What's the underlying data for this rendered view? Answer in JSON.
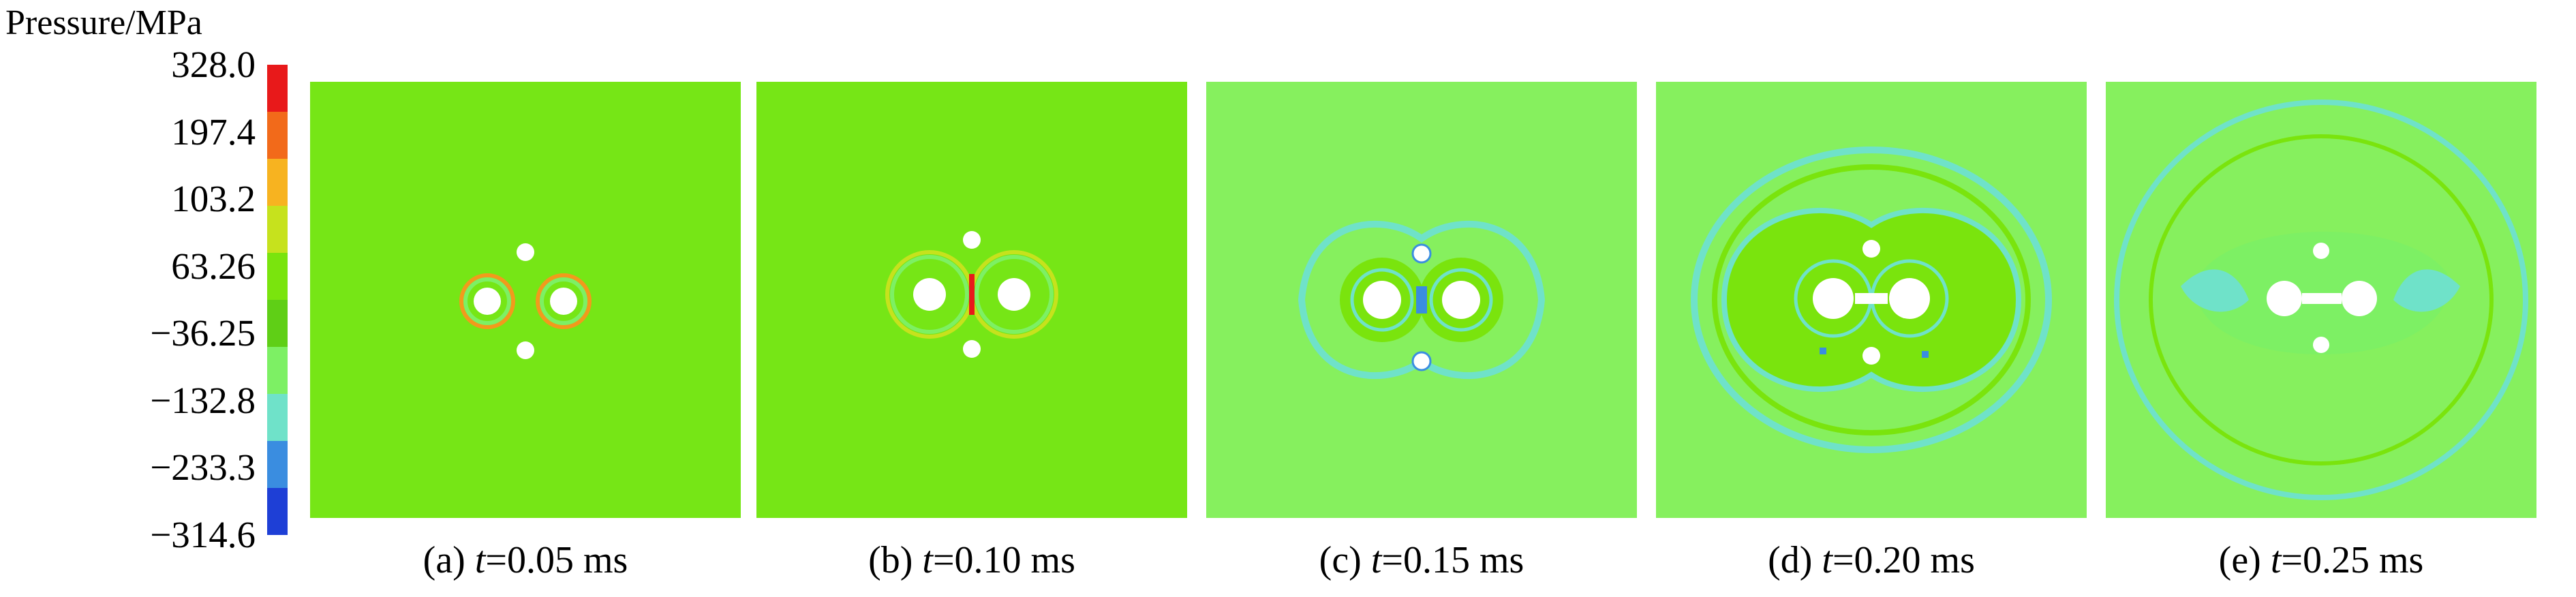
{
  "legend": {
    "title": "Pressure/MPa",
    "labels": [
      "328.0",
      "197.4",
      "103.2",
      "63.26",
      "−36.25",
      "−132.8",
      "−233.3",
      "−314.6"
    ],
    "colors": [
      "#e8191a",
      "#f26a1a",
      "#f7b320",
      "#c6e21d",
      "#7ae40d",
      "#5fcf16",
      "#7df064",
      "#6fe2c9",
      "#3a8de0",
      "#1e3fd6"
    ]
  },
  "panels": [
    {
      "label": "(a)",
      "var": "t",
      "value": "=0.05 ms"
    },
    {
      "label": "(b)",
      "var": "t",
      "value": "=0.10 ms"
    },
    {
      "label": "(c)",
      "var": "t",
      "value": "=0.15 ms"
    },
    {
      "label": "(d)",
      "var": "t",
      "value": "=0.20 ms"
    },
    {
      "label": "(e)",
      "var": "t",
      "value": "=0.25 ms"
    }
  ]
}
